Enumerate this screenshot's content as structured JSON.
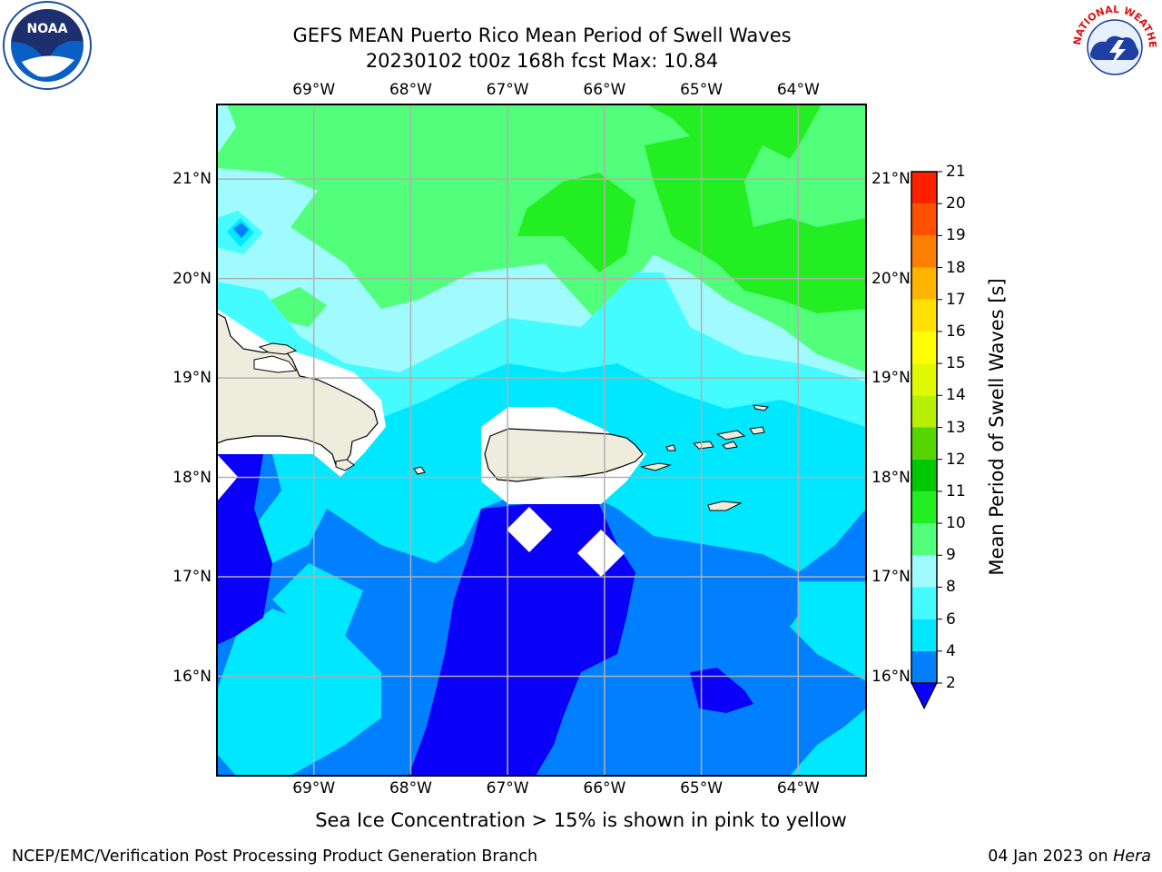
{
  "title": {
    "line1": "GEFS MEAN Puerto Rico Mean Period of Swell Waves",
    "line2": "20230102 t00z 168h fcst   Max: 10.84"
  },
  "map": {
    "lon_range": [
      -70.0,
      -63.3
    ],
    "lat_range": [
      15.0,
      21.75
    ],
    "lon_ticks": [
      "69°W",
      "68°W",
      "67°W",
      "66°W",
      "65°W",
      "64°W"
    ],
    "lat_ticks": [
      "16°N",
      "17°N",
      "18°N",
      "19°N",
      "20°N",
      "21°N"
    ],
    "land_color": "#eeecdc",
    "grid_color": "#b0b0b0",
    "islands": [
      "Hispaniola (east)",
      "Puerto Rico",
      "Virgin Islands"
    ]
  },
  "colorbar": {
    "label": "Mean Period of Swell Waves [s]",
    "ticks": [
      "2",
      "4",
      "6",
      "8",
      "9",
      "10",
      "11",
      "12",
      "13",
      "14",
      "15",
      "16",
      "17",
      "18",
      "19",
      "20",
      "21"
    ],
    "colors": [
      "#0a00f8",
      "#0080ff",
      "#00e8ff",
      "#44fbff",
      "#a0fbff",
      "#52ff7a",
      "#22ee22",
      "#00c800",
      "#56d400",
      "#b6f000",
      "#e0f800",
      "#ffff00",
      "#ffe000",
      "#ffb400",
      "#ff8000",
      "#ff5000",
      "#ff2000",
      "#ff0000"
    ]
  },
  "footer": {
    "note": "Sea Ice Concentration > 15% is shown in pink to yellow",
    "credit_left": "NCEP/EMC/Verification Post Processing Product Generation Branch",
    "date": "04 Jan 2023 on ",
    "host": "Hera"
  },
  "logos": {
    "noaa_text": "NOAA",
    "nws_text": "NATIONAL WEATHER SERVICE"
  }
}
